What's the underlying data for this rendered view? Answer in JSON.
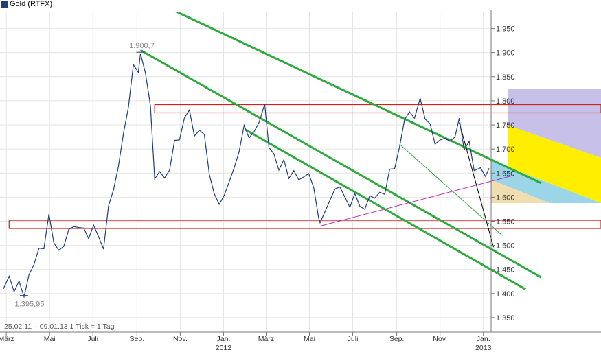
{
  "chart_data": {
    "type": "line",
    "legend": {
      "label": "Gold (RTFX)",
      "color": "#1f3d7a"
    },
    "info_text": "25.02.11 – 09.01.13   1 Tick = 1 Tag",
    "ylim": [
      1320,
      1985
    ],
    "y_ticks": [
      {
        "value": 1950,
        "label": "1.950"
      },
      {
        "value": 1900,
        "label": "1.900"
      },
      {
        "value": 1850,
        "label": "1.850"
      },
      {
        "value": 1800,
        "label": "1.800"
      },
      {
        "value": 1750,
        "label": "1.750"
      },
      {
        "value": 1700,
        "label": "1.700"
      },
      {
        "value": 1650,
        "label": "1.650"
      },
      {
        "value": 1600,
        "label": "1.600"
      },
      {
        "value": 1550,
        "label": "1.550"
      },
      {
        "value": 1500,
        "label": "1.500"
      },
      {
        "value": 1450,
        "label": "1.450"
      },
      {
        "value": 1400,
        "label": "1.400"
      },
      {
        "value": 1350,
        "label": "1.350"
      }
    ],
    "x_ticks": [
      {
        "label": "März",
        "year": "",
        "date": "2011-03-01"
      },
      {
        "label": "Mai",
        "year": "",
        "date": "2011-05-01"
      },
      {
        "label": "Juli",
        "year": "",
        "date": "2011-07-01"
      },
      {
        "label": "Sep.",
        "year": "",
        "date": "2011-09-01"
      },
      {
        "label": "Nov.",
        "year": "",
        "date": "2011-11-01"
      },
      {
        "label": "Jan.",
        "year": "2012",
        "date": "2012-01-01"
      },
      {
        "label": "März",
        "year": "",
        "date": "2012-03-01"
      },
      {
        "label": "Mai",
        "year": "",
        "date": "2012-05-01"
      },
      {
        "label": "Juli",
        "year": "",
        "date": "2012-07-01"
      },
      {
        "label": "Sep.",
        "year": "",
        "date": "2012-09-01"
      },
      {
        "label": "Nov.",
        "year": "",
        "date": "2012-11-01"
      },
      {
        "label": "Jan.",
        "year": "2013",
        "date": "2013-01-01"
      }
    ],
    "xlim": [
      "2011-02-25",
      "2013-01-09"
    ],
    "series": [
      {
        "name": "Gold (RTFX)",
        "color": "#1f3d7a",
        "points": [
          [
            "2011-02-25",
            1410
          ],
          [
            "2011-03-05",
            1432
          ],
          [
            "2011-03-12",
            1412
          ],
          [
            "2011-03-19",
            1425
          ],
          [
            "2011-03-26",
            1398
          ],
          [
            "2011-04-02",
            1430
          ],
          [
            "2011-04-09",
            1462
          ],
          [
            "2011-04-16",
            1488
          ],
          [
            "2011-04-23",
            1503
          ],
          [
            "2011-04-30",
            1562
          ],
          [
            "2011-05-07",
            1512
          ],
          [
            "2011-05-14",
            1490
          ],
          [
            "2011-05-21",
            1502
          ],
          [
            "2011-05-28",
            1525
          ],
          [
            "2011-06-04",
            1540
          ],
          [
            "2011-06-11",
            1532
          ],
          [
            "2011-06-18",
            1545
          ],
          [
            "2011-06-25",
            1512
          ],
          [
            "2011-07-02",
            1548
          ],
          [
            "2011-07-09",
            1508
          ],
          [
            "2011-07-16",
            1495
          ],
          [
            "2011-07-23",
            1575
          ],
          [
            "2011-07-30",
            1615
          ],
          [
            "2011-08-06",
            1660
          ],
          [
            "2011-08-13",
            1740
          ],
          [
            "2011-08-20",
            1785
          ],
          [
            "2011-08-27",
            1880
          ],
          [
            "2011-09-03",
            1850
          ],
          [
            "2011-09-06",
            1900
          ],
          [
            "2011-09-13",
            1852
          ],
          [
            "2011-09-20",
            1800
          ],
          [
            "2011-09-26",
            1635
          ],
          [
            "2011-10-03",
            1660
          ],
          [
            "2011-10-10",
            1640
          ],
          [
            "2011-10-17",
            1660
          ],
          [
            "2011-10-24",
            1710
          ],
          [
            "2011-10-31",
            1720
          ],
          [
            "2011-11-07",
            1760
          ],
          [
            "2011-11-14",
            1790
          ],
          [
            "2011-11-21",
            1725
          ],
          [
            "2011-11-28",
            1745
          ],
          [
            "2011-12-05",
            1720
          ],
          [
            "2011-12-12",
            1650
          ],
          [
            "2011-12-19",
            1600
          ],
          [
            "2011-12-26",
            1585
          ],
          [
            "2012-01-02",
            1600
          ],
          [
            "2012-01-09",
            1640
          ],
          [
            "2012-01-16",
            1660
          ],
          [
            "2012-01-23",
            1700
          ],
          [
            "2012-01-30",
            1740
          ],
          [
            "2012-02-06",
            1725
          ],
          [
            "2012-02-13",
            1730
          ],
          [
            "2012-02-20",
            1765
          ],
          [
            "2012-02-28",
            1790
          ],
          [
            "2012-03-05",
            1710
          ],
          [
            "2012-03-12",
            1690
          ],
          [
            "2012-03-19",
            1660
          ],
          [
            "2012-03-26",
            1670
          ],
          [
            "2012-04-02",
            1640
          ],
          [
            "2012-04-09",
            1650
          ],
          [
            "2012-04-16",
            1645
          ],
          [
            "2012-04-23",
            1640
          ],
          [
            "2012-04-30",
            1655
          ],
          [
            "2012-05-07",
            1610
          ],
          [
            "2012-05-14",
            1560
          ],
          [
            "2012-05-16",
            1540
          ],
          [
            "2012-05-23",
            1570
          ],
          [
            "2012-05-30",
            1590
          ],
          [
            "2012-06-06",
            1625
          ],
          [
            "2012-06-13",
            1620
          ],
          [
            "2012-06-20",
            1605
          ],
          [
            "2012-06-27",
            1570
          ],
          [
            "2012-07-04",
            1610
          ],
          [
            "2012-07-11",
            1575
          ],
          [
            "2012-07-18",
            1585
          ],
          [
            "2012-07-25",
            1600
          ],
          [
            "2012-08-01",
            1605
          ],
          [
            "2012-08-08",
            1610
          ],
          [
            "2012-08-15",
            1610
          ],
          [
            "2012-08-22",
            1650
          ],
          [
            "2012-08-29",
            1660
          ],
          [
            "2012-09-05",
            1700
          ],
          [
            "2012-09-12",
            1770
          ],
          [
            "2012-09-19",
            1775
          ],
          [
            "2012-09-26",
            1770
          ],
          [
            "2012-10-04",
            1795
          ],
          [
            "2012-10-11",
            1765
          ],
          [
            "2012-10-18",
            1745
          ],
          [
            "2012-10-25",
            1710
          ],
          [
            "2012-11-01",
            1715
          ],
          [
            "2012-11-08",
            1730
          ],
          [
            "2012-11-15",
            1715
          ],
          [
            "2012-11-22",
            1730
          ],
          [
            "2012-11-28",
            1755
          ],
          [
            "2012-12-05",
            1700
          ],
          [
            "2012-12-12",
            1710
          ],
          [
            "2012-12-19",
            1665
          ],
          [
            "2012-12-28",
            1658
          ],
          [
            "2013-01-04",
            1650
          ],
          [
            "2013-01-09",
            1660
          ]
        ]
      }
    ],
    "annotations": [
      {
        "label": "1.900,7",
        "date": "2011-09-06",
        "value": 1900.7
      },
      {
        "label": "1.395,95",
        "date": "2011-03-26",
        "value": 1395.95
      }
    ],
    "trend_lines": [
      {
        "name": "upper-channel-line",
        "color": "#2eaa3e",
        "from": [
          "2011-09-06",
          2020
        ],
        "to": [
          "2013-01-09",
          1680
        ]
      },
      {
        "name": "middle-channel-line",
        "color": "#2eaa3e",
        "from": [
          "2011-09-06",
          1905
        ],
        "to": [
          "2013-01-09",
          1495
        ]
      },
      {
        "name": "lower-channel-line",
        "color": "#2eaa3e",
        "from": [
          "2012-02-01",
          1740
        ],
        "to": [
          "2013-01-09",
          1452
        ]
      },
      {
        "name": "thin-green-line",
        "color": "#2eaa3e",
        "from": [
          "2012-09-05",
          1710
        ],
        "to": [
          "2013-01-09",
          1545
        ]
      },
      {
        "name": "purple-support-line",
        "color": "#b030b0",
        "from": [
          "2012-05-16",
          1540
        ],
        "to": [
          "2013-01-09",
          1632
        ]
      },
      {
        "name": "black-short-trend-line",
        "color": "#000000",
        "from": [
          "2012-11-28",
          1755
        ],
        "to": [
          "2013-01-09",
          1530
        ]
      }
    ],
    "resistance_zones": [
      {
        "name": "upper-resistance-zone",
        "color": "#d02020",
        "from": "2011-09-26",
        "low": 1775,
        "high": 1792
      },
      {
        "name": "lower-support-zone",
        "color": "#d02020",
        "from": "2011-03-05",
        "low": 1535,
        "high": 1552
      }
    ]
  }
}
